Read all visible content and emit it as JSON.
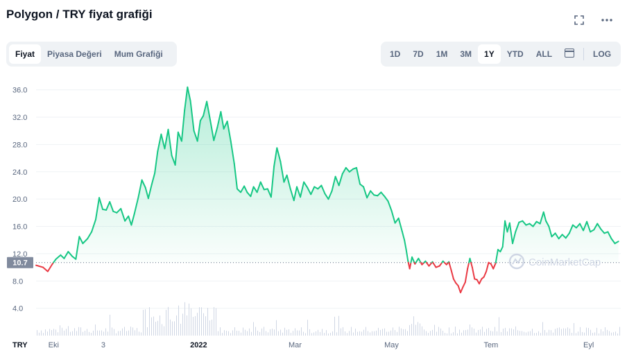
{
  "header": {
    "title": "Polygon / TRY fiyat grafiği",
    "fullscreen_icon": "fullscreen-icon",
    "more_icon": "more-dots-icon"
  },
  "tabs": [
    {
      "label": "Fiyat",
      "active": true
    },
    {
      "label": "Piyasa Değeri",
      "active": false
    },
    {
      "label": "Mum Grafiği",
      "active": false
    }
  ],
  "ranges": [
    {
      "label": "1D",
      "active": false
    },
    {
      "label": "7D",
      "active": false
    },
    {
      "label": "1M",
      "active": false
    },
    {
      "label": "3M",
      "active": false
    },
    {
      "label": "1Y",
      "active": true
    },
    {
      "label": "YTD",
      "active": false
    },
    {
      "label": "ALL",
      "active": false
    }
  ],
  "calendar_icon": "calendar-icon",
  "log_label": "LOG",
  "watermark": "CoinMarketCap",
  "currency_label": "TRY",
  "colors": {
    "up": "#16c784",
    "down": "#ea3943",
    "grid": "#eff2f5",
    "text": "#58667e"
  },
  "chart_data": {
    "type": "area",
    "title": "",
    "ylabel": "",
    "xlabel": "",
    "ylim": [
      0,
      38
    ],
    "yticks": [
      4.0,
      8.0,
      12.0,
      16.0,
      20.0,
      24.0,
      28.0,
      32.0,
      36.0
    ],
    "reference_value": 10.7,
    "reference_label": "10.7",
    "xticks": [
      {
        "label": "Eki",
        "t": 0.03,
        "bold": false
      },
      {
        "label": "3",
        "t": 0.115,
        "bold": false
      },
      {
        "label": "2022",
        "t": 0.278,
        "bold": true
      },
      {
        "label": "Mar",
        "t": 0.443,
        "bold": false
      },
      {
        "label": "May",
        "t": 0.608,
        "bold": false
      },
      {
        "label": "Tem",
        "t": 0.778,
        "bold": false
      },
      {
        "label": "Eyl",
        "t": 0.945,
        "bold": false
      }
    ],
    "series": [
      {
        "values": [
          [
            0.0,
            10.3
          ],
          [
            0.012,
            10.0
          ],
          [
            0.02,
            9.4
          ],
          [
            0.028,
            10.5
          ],
          [
            0.034,
            11.2
          ],
          [
            0.042,
            11.8
          ],
          [
            0.048,
            11.3
          ],
          [
            0.055,
            12.3
          ],
          [
            0.062,
            11.6
          ],
          [
            0.068,
            11.2
          ],
          [
            0.074,
            14.5
          ],
          [
            0.08,
            13.5
          ],
          [
            0.088,
            14.2
          ],
          [
            0.095,
            15.2
          ],
          [
            0.102,
            17.0
          ],
          [
            0.108,
            20.2
          ],
          [
            0.114,
            18.5
          ],
          [
            0.12,
            18.4
          ],
          [
            0.126,
            19.6
          ],
          [
            0.132,
            18.2
          ],
          [
            0.138,
            18.0
          ],
          [
            0.145,
            18.6
          ],
          [
            0.152,
            16.8
          ],
          [
            0.158,
            17.5
          ],
          [
            0.163,
            16.2
          ],
          [
            0.168,
            17.8
          ],
          [
            0.175,
            20.3
          ],
          [
            0.181,
            22.8
          ],
          [
            0.187,
            21.7
          ],
          [
            0.192,
            20.1
          ],
          [
            0.198,
            22.2
          ],
          [
            0.203,
            23.8
          ],
          [
            0.208,
            27.0
          ],
          [
            0.214,
            29.5
          ],
          [
            0.22,
            27.4
          ],
          [
            0.226,
            30.2
          ],
          [
            0.232,
            26.4
          ],
          [
            0.238,
            25.0
          ],
          [
            0.243,
            29.8
          ],
          [
            0.249,
            28.5
          ],
          [
            0.254,
            33.0
          ],
          [
            0.259,
            36.4
          ],
          [
            0.264,
            34.4
          ],
          [
            0.27,
            30.0
          ],
          [
            0.276,
            28.5
          ],
          [
            0.281,
            31.5
          ],
          [
            0.286,
            32.2
          ],
          [
            0.292,
            34.3
          ],
          [
            0.298,
            31.5
          ],
          [
            0.304,
            28.6
          ],
          [
            0.31,
            30.5
          ],
          [
            0.316,
            32.8
          ],
          [
            0.321,
            30.3
          ],
          [
            0.327,
            31.4
          ],
          [
            0.333,
            28.5
          ],
          [
            0.339,
            25.2
          ],
          [
            0.344,
            21.5
          ],
          [
            0.35,
            21.0
          ],
          [
            0.356,
            21.9
          ],
          [
            0.361,
            21.0
          ],
          [
            0.367,
            20.4
          ],
          [
            0.372,
            21.8
          ],
          [
            0.378,
            21.0
          ],
          [
            0.384,
            22.5
          ],
          [
            0.39,
            21.4
          ],
          [
            0.396,
            21.5
          ],
          [
            0.402,
            20.3
          ],
          [
            0.407,
            24.8
          ],
          [
            0.412,
            27.5
          ],
          [
            0.418,
            25.5
          ],
          [
            0.424,
            22.5
          ],
          [
            0.429,
            23.5
          ],
          [
            0.435,
            21.5
          ],
          [
            0.441,
            19.8
          ],
          [
            0.446,
            21.8
          ],
          [
            0.452,
            20.3
          ],
          [
            0.458,
            22.5
          ],
          [
            0.464,
            21.7
          ],
          [
            0.47,
            20.7
          ],
          [
            0.476,
            21.8
          ],
          [
            0.482,
            21.5
          ],
          [
            0.488,
            22.0
          ],
          [
            0.494,
            20.8
          ],
          [
            0.5,
            20.0
          ],
          [
            0.506,
            21.2
          ],
          [
            0.512,
            23.3
          ],
          [
            0.518,
            22.0
          ],
          [
            0.524,
            23.7
          ],
          [
            0.53,
            24.6
          ],
          [
            0.536,
            24.0
          ],
          [
            0.542,
            24.4
          ],
          [
            0.548,
            24.6
          ],
          [
            0.554,
            22.2
          ],
          [
            0.56,
            21.8
          ],
          [
            0.566,
            20.2
          ],
          [
            0.572,
            21.2
          ],
          [
            0.578,
            20.6
          ],
          [
            0.584,
            20.5
          ],
          [
            0.59,
            21.0
          ],
          [
            0.596,
            20.4
          ],
          [
            0.602,
            19.7
          ],
          [
            0.608,
            18.3
          ],
          [
            0.614,
            16.5
          ],
          [
            0.62,
            17.2
          ],
          [
            0.626,
            15.3
          ],
          [
            0.63,
            14.0
          ],
          [
            0.633,
            12.6
          ],
          [
            0.636,
            11.0
          ],
          [
            0.639,
            9.8
          ],
          [
            0.643,
            11.5
          ],
          [
            0.648,
            10.5
          ],
          [
            0.654,
            11.3
          ],
          [
            0.66,
            10.4
          ],
          [
            0.666,
            10.9
          ],
          [
            0.672,
            10.2
          ],
          [
            0.678,
            10.8
          ],
          [
            0.684,
            10.0
          ],
          [
            0.69,
            10.2
          ],
          [
            0.696,
            10.9
          ],
          [
            0.702,
            10.4
          ],
          [
            0.706,
            10.8
          ],
          [
            0.71,
            9.6
          ],
          [
            0.714,
            8.3
          ],
          [
            0.718,
            7.7
          ],
          [
            0.722,
            7.3
          ],
          [
            0.726,
            6.3
          ],
          [
            0.73,
            7.1
          ],
          [
            0.734,
            7.8
          ],
          [
            0.738,
            9.8
          ],
          [
            0.742,
            11.3
          ],
          [
            0.746,
            10.0
          ],
          [
            0.75,
            8.3
          ],
          [
            0.754,
            8.2
          ],
          [
            0.758,
            7.6
          ],
          [
            0.762,
            8.3
          ],
          [
            0.766,
            8.6
          ],
          [
            0.77,
            9.4
          ],
          [
            0.774,
            10.7
          ],
          [
            0.778,
            10.5
          ],
          [
            0.782,
            9.8
          ],
          [
            0.786,
            10.6
          ],
          [
            0.79,
            12.6
          ],
          [
            0.794,
            12.3
          ],
          [
            0.798,
            13.0
          ],
          [
            0.802,
            16.8
          ],
          [
            0.806,
            15.2
          ],
          [
            0.81,
            16.5
          ],
          [
            0.815,
            13.5
          ],
          [
            0.82,
            15.2
          ],
          [
            0.826,
            16.6
          ],
          [
            0.832,
            16.8
          ],
          [
            0.838,
            16.2
          ],
          [
            0.844,
            16.4
          ],
          [
            0.85,
            16.0
          ],
          [
            0.856,
            16.7
          ],
          [
            0.862,
            16.4
          ],
          [
            0.868,
            18.1
          ],
          [
            0.872,
            16.8
          ],
          [
            0.877,
            16.0
          ],
          [
            0.882,
            14.5
          ],
          [
            0.888,
            15.0
          ],
          [
            0.894,
            14.2
          ],
          [
            0.9,
            14.8
          ],
          [
            0.906,
            14.3
          ],
          [
            0.912,
            15.0
          ],
          [
            0.918,
            16.2
          ],
          [
            0.924,
            15.8
          ],
          [
            0.93,
            16.4
          ],
          [
            0.936,
            15.4
          ],
          [
            0.942,
            16.7
          ],
          [
            0.948,
            15.2
          ],
          [
            0.954,
            15.5
          ],
          [
            0.96,
            16.4
          ],
          [
            0.966,
            15.6
          ],
          [
            0.972,
            15.0
          ],
          [
            0.978,
            15.2
          ],
          [
            0.984,
            14.2
          ],
          [
            0.99,
            13.5
          ],
          [
            0.996,
            13.8
          ]
        ]
      }
    ]
  }
}
